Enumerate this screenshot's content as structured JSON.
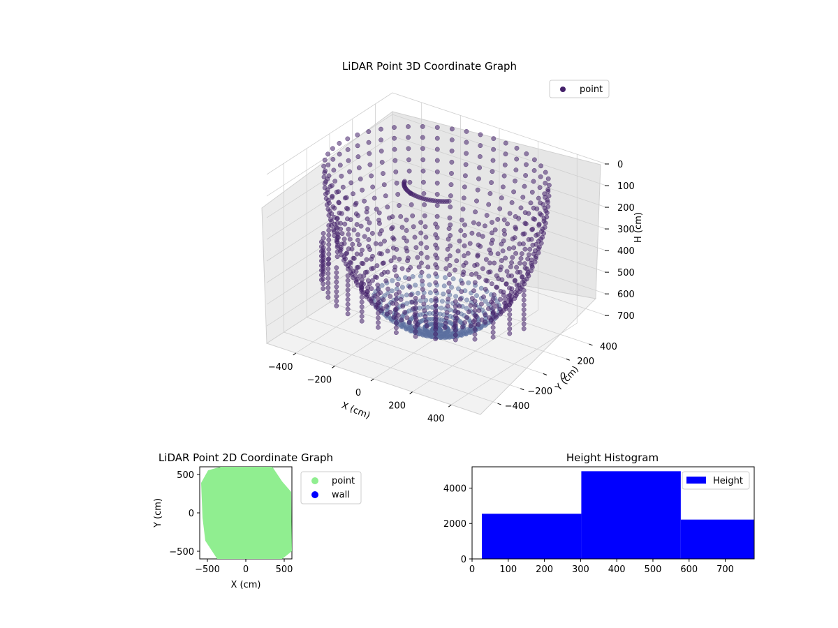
{
  "colors": {
    "point_3d": "#44206a",
    "point_3d_low": "#5b6fa0",
    "point_2d": "#90ee90",
    "wall_2d": "#0000ff",
    "hist": "#0000ff"
  },
  "chart_data": [
    {
      "type": "scatter3d",
      "title": "LiDAR Point 3D Coordinate Graph",
      "xlabel": "X (cm)",
      "ylabel": "Y (cm)",
      "zlabel": "H (cm)",
      "x_ticks": [
        "−400",
        "−200",
        "0",
        "200",
        "400"
      ],
      "y_ticks": [
        "−400",
        "−200",
        "0",
        "200",
        "400"
      ],
      "z_ticks": [
        "0",
        "100",
        "200",
        "300",
        "400",
        "500",
        "600",
        "700"
      ],
      "xlim": [
        -550,
        550
      ],
      "ylim": [
        -550,
        550
      ],
      "zlim": [
        780,
        0
      ],
      "grid": true,
      "legend": {
        "placement": "top-right",
        "entries": [
          "point"
        ]
      },
      "series": [
        {
          "name": "point",
          "description_shape": "hemispherical bowl of points, radius ~500 cm, heights 0-780 cm",
          "radius_cm": 500,
          "height_range_cm": [
            0,
            780
          ]
        }
      ]
    },
    {
      "type": "scatter",
      "title": "LiDAR Point 2D Coordinate Graph",
      "xlabel": "X (cm)",
      "ylabel": "Y (cm)",
      "x_ticks": [
        "−500",
        "0",
        "500"
      ],
      "y_ticks": [
        "500",
        "0",
        "−500"
      ],
      "xlim": [
        -600,
        600
      ],
      "ylim": [
        -600,
        600
      ],
      "legend": {
        "placement": "outside-right",
        "entries": [
          "point",
          "wall"
        ]
      },
      "series": [
        {
          "name": "point",
          "shape": "filled disk of points, radius ~550 cm"
        },
        {
          "name": "wall",
          "values": []
        }
      ]
    },
    {
      "type": "histogram",
      "title": "Height Histogram",
      "x_ticks": [
        "0",
        "100",
        "200",
        "300",
        "400",
        "500",
        "600",
        "700"
      ],
      "y_ticks": [
        "0",
        "2000",
        "4000"
      ],
      "xlim": [
        0,
        780
      ],
      "ylim": [
        0,
        5200
      ],
      "legend": {
        "placement": "top-right",
        "entries": [
          "Height"
        ]
      },
      "series": [
        {
          "name": "Height",
          "bins": [
            {
              "start": 27,
              "end": 302,
              "count": 2550
            },
            {
              "start": 302,
              "end": 577,
              "count": 4950
            },
            {
              "start": 577,
              "end": 780,
              "count": 2220
            }
          ]
        }
      ]
    }
  ]
}
